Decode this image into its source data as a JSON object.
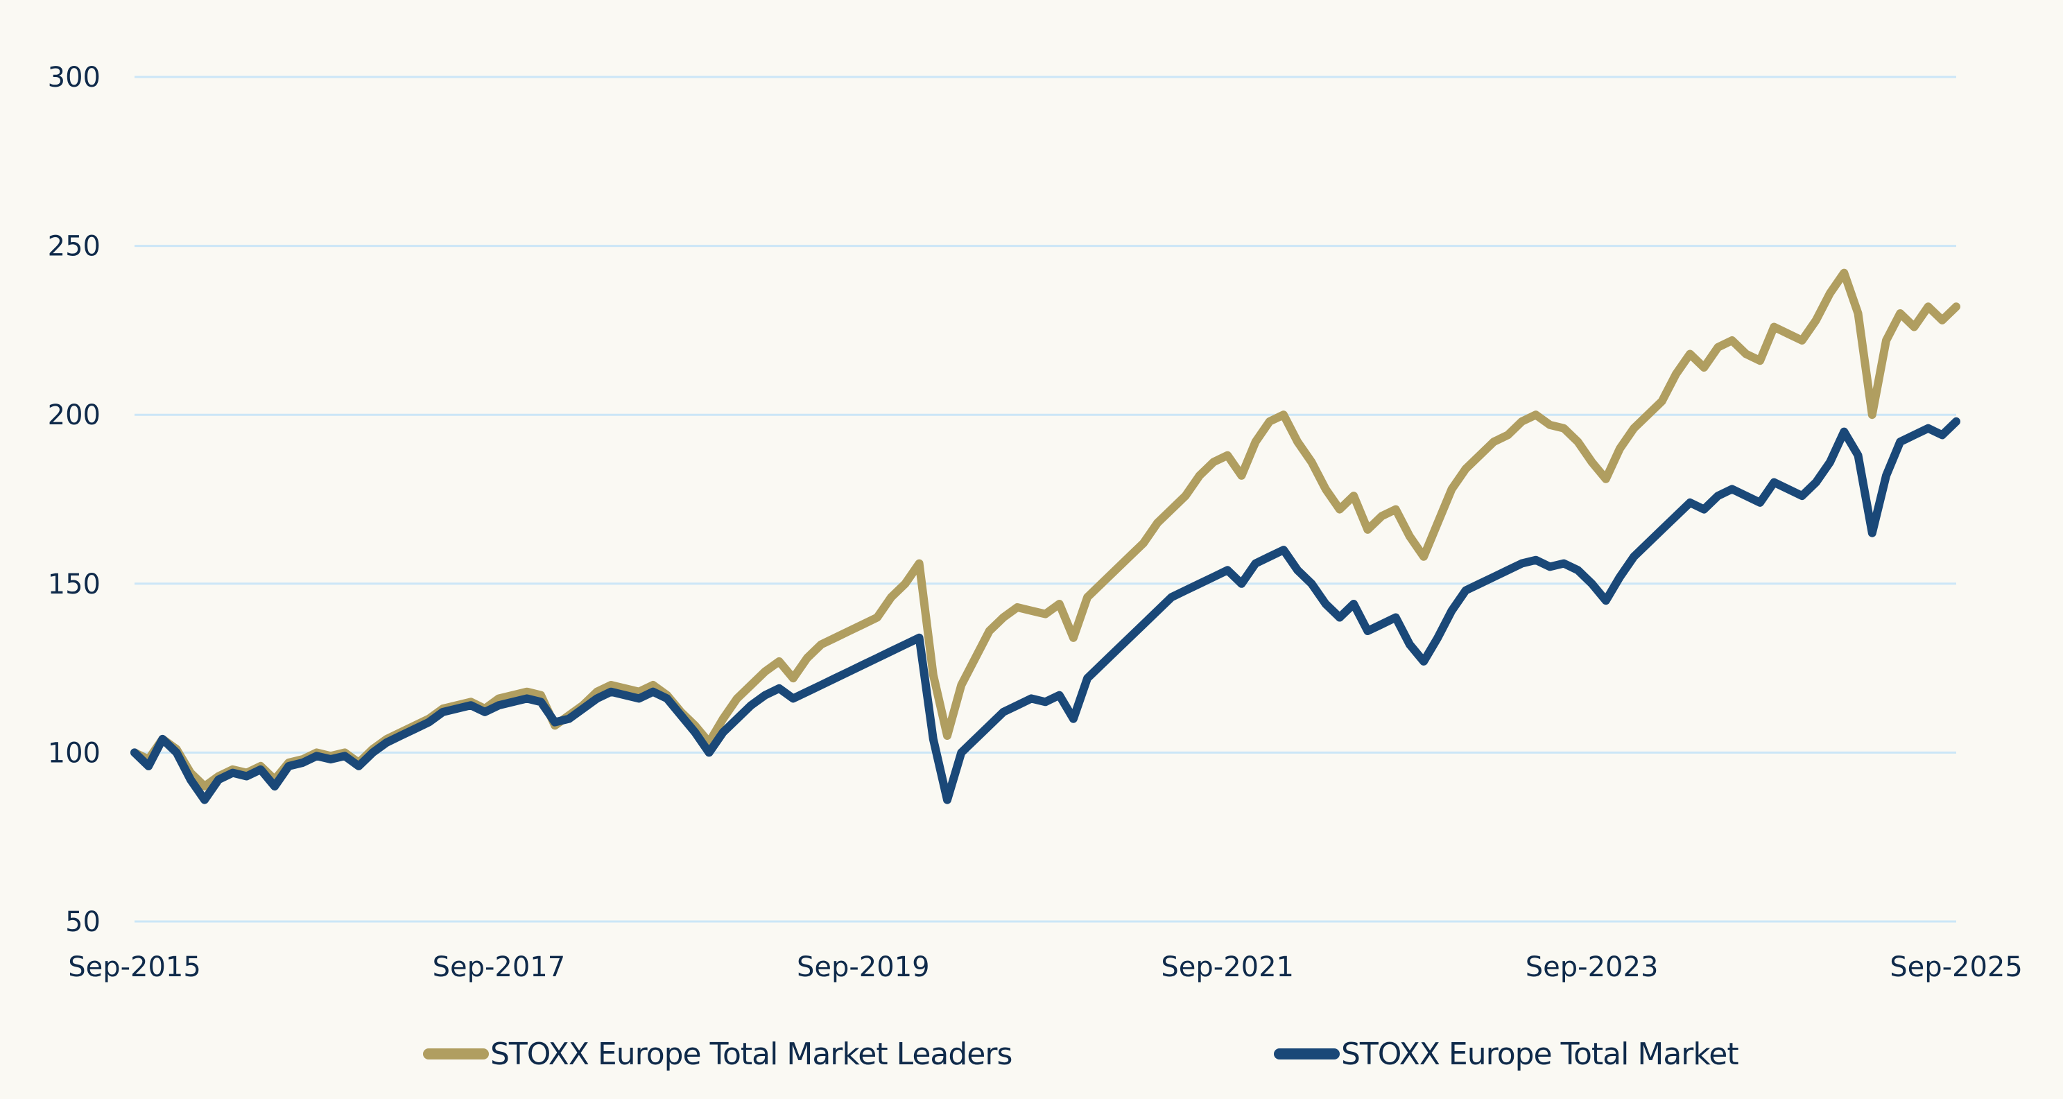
{
  "chart_data": {
    "type": "line",
    "title": "",
    "xlabel": "",
    "ylabel": "",
    "ylim": [
      50,
      300
    ],
    "yticks": [
      "300",
      "250",
      "200",
      "150",
      "100",
      "50"
    ],
    "ytick_values": [
      300,
      250,
      200,
      150,
      100,
      50
    ],
    "xticks": [
      "Sep-2015",
      "Sep-2017",
      "Sep-2019",
      "Sep-2021",
      "Sep-2023",
      "Sep-2025"
    ],
    "x_start": "Sep-2015",
    "x_end": "Sep-2025",
    "x_unit": "monthly",
    "grid": true,
    "legend_position": "bottom",
    "series": [
      {
        "name": "STOXX Europe Total Market Leaders",
        "color": "#b09e60",
        "values": [
          100,
          98,
          104,
          101,
          94,
          90,
          93,
          95,
          94,
          96,
          92,
          97,
          98,
          100,
          99,
          100,
          97,
          101,
          104,
          106,
          108,
          110,
          113,
          114,
          115,
          113,
          116,
          117,
          118,
          117,
          108,
          111,
          114,
          118,
          120,
          119,
          118,
          120,
          117,
          112,
          108,
          103,
          110,
          116,
          120,
          124,
          127,
          122,
          128,
          132,
          134,
          136,
          138,
          140,
          146,
          150,
          156,
          123,
          105,
          120,
          128,
          136,
          140,
          143,
          142,
          141,
          144,
          134,
          146,
          150,
          154,
          158,
          162,
          168,
          172,
          176,
          182,
          186,
          188,
          182,
          192,
          198,
          200,
          192,
          186,
          178,
          172,
          176,
          166,
          170,
          172,
          164,
          158,
          168,
          178,
          184,
          188,
          192,
          194,
          198,
          200,
          197,
          196,
          192,
          186,
          181,
          190,
          196,
          200,
          204,
          212,
          218,
          214,
          220,
          222,
          218,
          216,
          226,
          224,
          222,
          228,
          236,
          242,
          230,
          200,
          222,
          230,
          226,
          232,
          228,
          232
        ]
      },
      {
        "name": "STOXX Europe Total Market",
        "color": "#1a4878",
        "values": [
          100,
          96,
          104,
          100,
          92,
          86,
          92,
          94,
          93,
          95,
          90,
          96,
          97,
          99,
          98,
          99,
          96,
          100,
          103,
          105,
          107,
          109,
          112,
          113,
          114,
          112,
          114,
          115,
          116,
          115,
          109,
          110,
          113,
          116,
          118,
          117,
          116,
          118,
          116,
          111,
          106,
          100,
          106,
          110,
          114,
          117,
          119,
          116,
          118,
          120,
          122,
          124,
          126,
          128,
          130,
          132,
          134,
          104,
          86,
          100,
          104,
          108,
          112,
          114,
          116,
          115,
          117,
          110,
          122,
          126,
          130,
          134,
          138,
          142,
          146,
          148,
          150,
          152,
          154,
          150,
          156,
          158,
          160,
          154,
          150,
          144,
          140,
          144,
          136,
          138,
          140,
          132,
          127,
          134,
          142,
          148,
          150,
          152,
          154,
          156,
          157,
          155,
          156,
          154,
          150,
          145,
          152,
          158,
          162,
          166,
          170,
          174,
          172,
          176,
          178,
          176,
          174,
          180,
          178,
          176,
          180,
          186,
          195,
          188,
          165,
          182,
          192,
          194,
          196,
          194,
          198
        ]
      }
    ]
  },
  "legend": {
    "items": [
      {
        "label": "STOXX Europe Total Market Leaders",
        "color": "#b09e60"
      },
      {
        "label": "STOXX Europe Total Market",
        "color": "#1a4878"
      }
    ]
  }
}
